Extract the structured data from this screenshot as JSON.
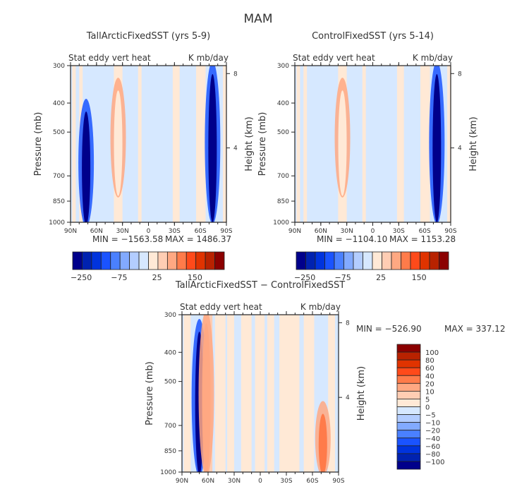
{
  "figure_title": "MAM",
  "chart_data": [
    {
      "type": "heatmap",
      "title": "TallArcticFixedSST (yrs 5-9)",
      "left_label": "Stat eddy vert heat",
      "right_label": "K mb/day",
      "xlabel": "",
      "ylabel": "Pressure (mb)",
      "y2label": "Height (km)",
      "x_ticks": [
        "90N",
        "60N",
        "30N",
        "0",
        "30S",
        "60S",
        "90S"
      ],
      "y_ticks": [
        "300",
        "400",
        "500",
        "700",
        "850",
        "1000"
      ],
      "y2_ticks": [
        "8",
        "4"
      ],
      "ylim": [
        1000,
        300
      ],
      "stats": {
        "min": "MIN = −1563.58",
        "max": "MAX = 1486.37"
      },
      "colorbar": {
        "orientation": "horizontal",
        "tick_labels": [
          "−250",
          "−75",
          "25",
          "150"
        ]
      },
      "features": [
        {
          "lat": 72,
          "p_top": 400,
          "p_bot": 1000,
          "value": -250
        },
        {
          "lat": -74,
          "p_top": 300,
          "p_bot": 980,
          "value": -250
        },
        {
          "lat": 35,
          "p_top": 340,
          "p_bot": 800,
          "value": 10
        }
      ]
    },
    {
      "type": "heatmap",
      "title": "ControlFixedSST (yrs 5-14)",
      "left_label": "Stat eddy vert heat",
      "right_label": "K mb/day",
      "xlabel": "",
      "ylabel": "Pressure (mb)",
      "y2label": "Height (km)",
      "x_ticks": [
        "90N",
        "60N",
        "30N",
        "0",
        "30S",
        "60S",
        "90S"
      ],
      "y_ticks": [
        "300",
        "400",
        "500",
        "700",
        "850",
        "1000"
      ],
      "y2_ticks": [
        "8",
        "4"
      ],
      "ylim": [
        1000,
        300
      ],
      "stats": {
        "min": "MIN = −1104.10",
        "max": "MAX = 1153.28"
      },
      "colorbar": {
        "orientation": "horizontal",
        "tick_labels": [
          "−250",
          "−75",
          "25",
          "150"
        ]
      },
      "features": [
        {
          "lat": -74,
          "p_top": 300,
          "p_bot": 980,
          "value": -250
        },
        {
          "lat": 35,
          "p_top": 340,
          "p_bot": 800,
          "value": 10
        }
      ]
    },
    {
      "type": "heatmap",
      "title": "TallArcticFixedSST − ControlFixedSST",
      "left_label": "Stat eddy vert heat",
      "right_label": "K mb/day",
      "xlabel": "",
      "ylabel": "Pressure (mb)",
      "y2label": "Height (km)",
      "x_ticks": [
        "90N",
        "60N",
        "30N",
        "0",
        "30S",
        "60S",
        "90S"
      ],
      "y_ticks": [
        "300",
        "400",
        "500",
        "700",
        "850",
        "1000"
      ],
      "y2_ticks": [
        "8",
        "4"
      ],
      "ylim": [
        1000,
        300
      ],
      "stats": {
        "min": "MIN = −526.90",
        "max": "MAX = 337.12"
      },
      "colorbar": {
        "orientation": "vertical",
        "tick_labels": [
          "100",
          "80",
          "60",
          "40",
          "20",
          "10",
          "5",
          "0",
          "−5",
          "−10",
          "−20",
          "−40",
          "−60",
          "−80",
          "−100"
        ]
      },
      "features": [
        {
          "lat": 70,
          "p_top": 320,
          "p_bot": 1000,
          "value": -100
        },
        {
          "lat": 62,
          "p_top": 300,
          "p_bot": 1000,
          "value": 20
        },
        {
          "lat": -72,
          "p_top": 600,
          "p_bot": 1000,
          "value": 40
        }
      ]
    }
  ],
  "colors": {
    "diverging": [
      "#00008b",
      "#0022b0",
      "#0033dd",
      "#1a53ff",
      "#4a80ff",
      "#82aaff",
      "#b3cdff",
      "#d6e8ff",
      "#ffe9d6",
      "#ffcdb3",
      "#ffa882",
      "#ff7b4a",
      "#ff4a1a",
      "#e03300",
      "#b82200",
      "#8b0000"
    ]
  }
}
